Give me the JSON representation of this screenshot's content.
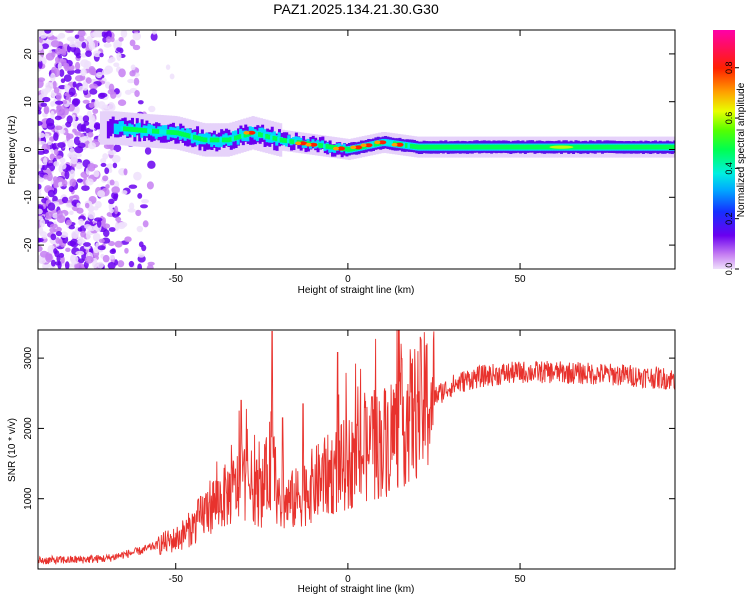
{
  "chart_data": [
    {
      "type": "heatmap",
      "title": "PAZ1.2025.134.21.30.G30",
      "xlabel": "Height of straight line (km)",
      "ylabel": "Frequency (Hz)",
      "xlim": [
        -90,
        95
      ],
      "ylim": [
        -25,
        25
      ],
      "x_ticks": [
        -50,
        0,
        50
      ],
      "x_tick_labels": [
        "-50",
        "0",
        "50"
      ],
      "y_ticks": [
        -20,
        -10,
        0,
        10,
        20
      ],
      "y_tick_labels": [
        "-20",
        "-10",
        "0",
        "10",
        "20"
      ],
      "colorbar": {
        "label": "Normalized spectral amplitude",
        "range": [
          0,
          0.95
        ],
        "ticks": [
          0.0,
          0.2,
          0.4,
          0.6,
          0.8
        ],
        "tick_labels": [
          "0.0",
          "0.2",
          "0.4",
          "0.6",
          "0.8"
        ],
        "colormap": "rainbow (purple-blue-cyan-green-yellow-red-magenta)"
      },
      "description_points": {
        "noise_region_x": [
          -90,
          -50
        ],
        "signal_band_center_hz": 0.5,
        "signal_band_path": [
          {
            "x": -68,
            "f": 4.5
          },
          {
            "x": -60,
            "f": 4
          },
          {
            "x": -50,
            "f": 3.5
          },
          {
            "x": -42,
            "f": 2
          },
          {
            "x": -35,
            "f": 2
          },
          {
            "x": -28,
            "f": 3.5
          },
          {
            "x": -20,
            "f": 2
          },
          {
            "x": -10,
            "f": 1
          },
          {
            "x": 0,
            "f": 0
          },
          {
            "x": 10,
            "f": 1.5
          },
          {
            "x": 20,
            "f": 0.5
          },
          {
            "x": 40,
            "f": 0.5
          },
          {
            "x": 60,
            "f": 0.5
          },
          {
            "x": 95,
            "f": 0.5
          }
        ]
      }
    },
    {
      "type": "line",
      "xlabel": "Height of straight line (km)",
      "ylabel": "SNR (10 * v/v)",
      "xlim": [
        -90,
        95
      ],
      "ylim": [
        0,
        3400
      ],
      "x_ticks": [
        -50,
        0,
        50
      ],
      "x_tick_labels": [
        "-50",
        "0",
        "50"
      ],
      "y_ticks": [
        1000,
        2000,
        3000
      ],
      "y_tick_labels": [
        "1000",
        "2000",
        "3000"
      ],
      "series": [
        {
          "color": "#e8322d",
          "x": [
            -90,
            -80,
            -70,
            -60,
            -55,
            -50,
            -45,
            -40,
            -35,
            -30,
            -25,
            -22,
            -20,
            -15,
            -10,
            -5,
            0,
            5,
            10,
            15,
            20,
            25,
            30,
            35,
            40,
            50,
            60,
            70,
            80,
            95
          ],
          "y": [
            120,
            130,
            150,
            260,
            350,
            420,
            600,
            900,
            1050,
            1250,
            1050,
            1600,
            900,
            1000,
            1200,
            1350,
            1500,
            1650,
            1800,
            2050,
            2250,
            2450,
            2600,
            2700,
            2750,
            2800,
            2800,
            2780,
            2760,
            2700
          ]
        }
      ]
    }
  ]
}
